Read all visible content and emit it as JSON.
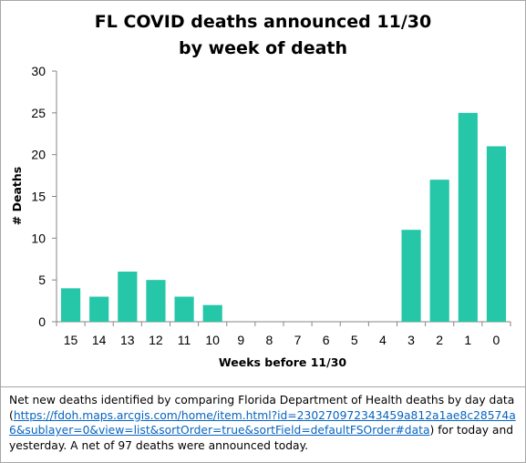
{
  "chart_data": {
    "type": "bar",
    "title": [
      "FL COVID deaths announced 11/30",
      "by week of death"
    ],
    "xlabel": "Weeks before 11/30",
    "ylabel": "# Deaths",
    "categories": [
      "15",
      "14",
      "13",
      "12",
      "11",
      "10",
      "9",
      "8",
      "7",
      "6",
      "5",
      "4",
      "3",
      "2",
      "1",
      "0"
    ],
    "values": [
      4,
      3,
      6,
      5,
      3,
      2,
      0,
      0,
      0,
      0,
      0,
      0,
      11,
      17,
      25,
      21
    ],
    "ylim": [
      0,
      30
    ],
    "yticks": [
      0,
      5,
      10,
      15,
      20,
      25,
      30
    ],
    "grid": false,
    "legend": "none",
    "bar_color": "#26c6a8"
  },
  "note": {
    "text_before": "Net new deaths identified by comparing Florida Department of Health deaths by day data (",
    "link": "https://fdoh.maps.arcgis.com/home/item.html?id=230270972343459a812a1ae8c28574a6&sublayer=0&view=list&sortOrder=true&sortField=defaultFSOrder#data",
    "text_after": ") for  today and yesterday. A net of 97 deaths were announced today."
  }
}
